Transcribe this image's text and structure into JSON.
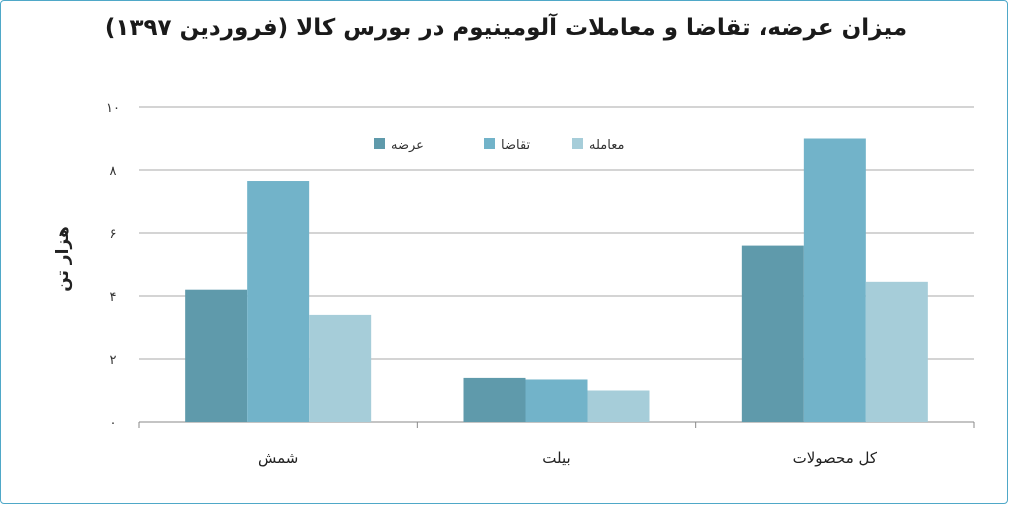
{
  "chart_data": {
    "type": "bar",
    "title": "میزان عرضه، تقاضا و معاملات آلومینیوم در بورس کالا (فروردین ۱۳۹۷)",
    "xlabel": "",
    "ylabel": "هزار تن",
    "ylim": [
      0,
      10
    ],
    "yticks": [
      0,
      2,
      4,
      6,
      8,
      10
    ],
    "ytick_labels": [
      "۰",
      "۲",
      "۴",
      "۶",
      "۸",
      "۱۰"
    ],
    "grid": true,
    "legend_position": "top-center",
    "categories": [
      "شمش",
      "بیلت",
      "کل محصولات"
    ],
    "series": [
      {
        "name": "عرضه",
        "values": [
          4.2,
          1.4,
          5.6
        ],
        "color": "#5f9aab"
      },
      {
        "name": "تقاضا",
        "values": [
          7.65,
          1.35,
          9.0
        ],
        "color": "#72b3c9"
      },
      {
        "name": "معامله",
        "values": [
          3.4,
          1.0,
          4.45
        ],
        "color": "#a6cdd9"
      }
    ]
  }
}
